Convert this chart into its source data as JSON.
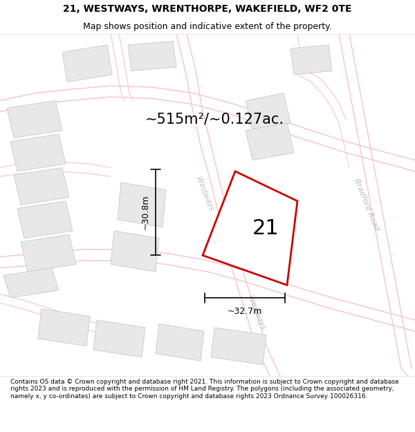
{
  "title_line1": "21, WESTWAYS, WRENTHORPE, WAKEFIELD, WF2 0TE",
  "title_line2": "Map shows position and indicative extent of the property.",
  "area_label": "~515m²/~0.127ac.",
  "plot_number": "21",
  "dim_width": "~32.7m",
  "dim_height": "~30.8m",
  "road_label_left": "Westways",
  "road_label_right": "Bradford Road",
  "footer_text": "Contains OS data © Crown copyright and database right 2021. This information is subject to Crown copyright and database rights 2023 and is reproduced with the permission of HM Land Registry. The polygons (including the associated geometry, namely x, y co-ordinates) are subject to Crown copyright and database rights 2023 Ordnance Survey 100026316.",
  "map_bg": "#ffffff",
  "plot_fill": "#ffffff",
  "plot_edge": "#cc0000",
  "street_color": "#f5c5c5",
  "building_fill": "#e8e8e8",
  "building_edge": "#c8c8c8",
  "text_color": "#000000",
  "road_text_color": "#bbbbbb",
  "title_fontsize": 10,
  "subtitle_fontsize": 9,
  "area_fontsize": 15,
  "plot_num_fontsize": 22,
  "dim_fontsize": 9,
  "road_fontsize": 7.5,
  "footer_fontsize": 6.5
}
